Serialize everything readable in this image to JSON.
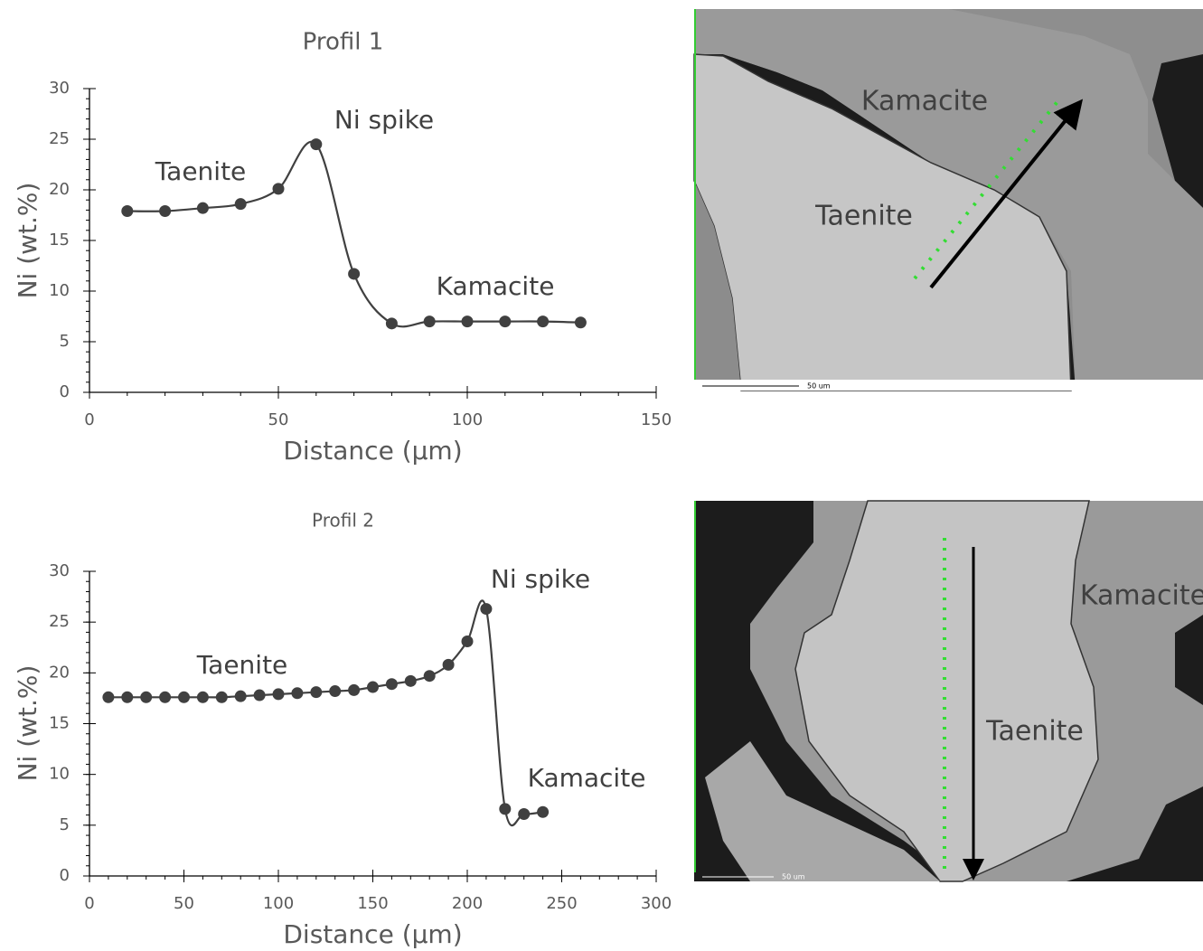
{
  "chart_data": [
    {
      "type": "line",
      "title": "Profil 1",
      "xlabel": "Distance (µm)",
      "ylabel": "Ni (wt.%)",
      "x": [
        10,
        20,
        30,
        40,
        50,
        60,
        70,
        80,
        90,
        100,
        110,
        120,
        130
      ],
      "series": [
        {
          "color": "#404040",
          "values": [
            17.9,
            17.9,
            18.2,
            18.6,
            20.1,
            24.5,
            11.7,
            6.8,
            7.0,
            7.0,
            7.0,
            7.0,
            6.9
          ]
        }
      ],
      "xlim": [
        0,
        150
      ],
      "ylim": [
        0,
        30
      ],
      "xticks": [
        0,
        50,
        100,
        150
      ],
      "yticks": [
        0,
        5,
        10,
        15,
        20,
        25,
        30
      ],
      "annotations": [
        "Taenite",
        "Ni spike",
        "Kamacite"
      ]
    },
    {
      "type": "line",
      "title": "Profil 2",
      "xlabel": "Distance (µm)",
      "ylabel": "Ni (wt.%)",
      "x": [
        10,
        20,
        30,
        40,
        50,
        60,
        70,
        80,
        90,
        100,
        110,
        120,
        130,
        140,
        150,
        160,
        170,
        180,
        190,
        200,
        210,
        220,
        230,
        240
      ],
      "series": [
        {
          "color": "#404040",
          "values": [
            17.6,
            17.6,
            17.6,
            17.6,
            17.6,
            17.6,
            17.6,
            17.7,
            17.8,
            17.9,
            18.0,
            18.1,
            18.2,
            18.3,
            18.6,
            18.9,
            19.2,
            19.7,
            20.8,
            23.1,
            26.3,
            6.6,
            6.1,
            6.3
          ]
        }
      ],
      "xlim": [
        0,
        300
      ],
      "ylim": [
        0,
        30
      ],
      "xticks": [
        0,
        50,
        100,
        150,
        200,
        250,
        300
      ],
      "yticks": [
        0,
        5,
        10,
        15,
        20,
        25,
        30
      ],
      "annotations": [
        "Taenite",
        "Ni spike",
        "Kamacite"
      ]
    }
  ],
  "images": [
    {
      "labels": [
        "Kamacite",
        "Taenite"
      ],
      "scale_bar": "50 um"
    },
    {
      "labels": [
        "Kamacite",
        "Taenite"
      ],
      "scale_bar": "50 um"
    }
  ]
}
